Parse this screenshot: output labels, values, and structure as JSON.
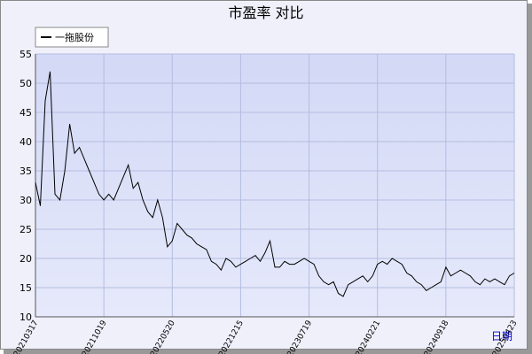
{
  "chart_data": {
    "type": "line",
    "title": "市盈率  对比",
    "x_label": "日期",
    "categories": [
      "20210317",
      null,
      null,
      null,
      null,
      null,
      null,
      null,
      null,
      null,
      null,
      null,
      null,
      null,
      "20211019",
      null,
      null,
      null,
      null,
      null,
      null,
      null,
      null,
      null,
      null,
      null,
      null,
      null,
      "20220520",
      null,
      null,
      null,
      null,
      null,
      null,
      null,
      null,
      null,
      null,
      null,
      null,
      null,
      "20221215",
      null,
      null,
      null,
      null,
      null,
      null,
      null,
      null,
      null,
      null,
      null,
      null,
      null,
      "20230719",
      null,
      null,
      null,
      null,
      null,
      null,
      null,
      null,
      null,
      null,
      null,
      null,
      null,
      "20240221",
      null,
      null,
      null,
      null,
      null,
      null,
      null,
      null,
      null,
      null,
      null,
      null,
      null,
      "20240918",
      null,
      null,
      null,
      null,
      null,
      null,
      null,
      null,
      null,
      null,
      null,
      null,
      null,
      "20250423"
    ],
    "series": [
      {
        "name": "一拖股份",
        "color": "#000000",
        "values": [
          33,
          29,
          47,
          52,
          31,
          30,
          35,
          43,
          38,
          39,
          37,
          35,
          33,
          31,
          30,
          31,
          30,
          32,
          34,
          36,
          32,
          33,
          30,
          28,
          27,
          30,
          27,
          22,
          23,
          26,
          25,
          24,
          23.5,
          22.5,
          22,
          21.5,
          19.5,
          19,
          18,
          20,
          19.5,
          18.5,
          19,
          19.5,
          20,
          20.5,
          19.5,
          21,
          23,
          18.5,
          18.5,
          19.5,
          19,
          19,
          19.5,
          20,
          19.5,
          19,
          17,
          16,
          15.5,
          16,
          14,
          13.5,
          15.5,
          16,
          16.5,
          17,
          16,
          17,
          19,
          19.5,
          19,
          20,
          19.5,
          19,
          17.5,
          17,
          16,
          15.5,
          14.5,
          15,
          15.5,
          16,
          18.5,
          17,
          17.5,
          18,
          17.5,
          17,
          16,
          15.5,
          16.5,
          16,
          16.5,
          16,
          15.5,
          17,
          17.5
        ]
      }
    ],
    "ylim": [
      10,
      55
    ],
    "yticks": [
      10,
      15,
      20,
      25,
      30,
      35,
      40,
      45,
      50,
      55
    ],
    "grid": true,
    "legend": "top-left"
  }
}
